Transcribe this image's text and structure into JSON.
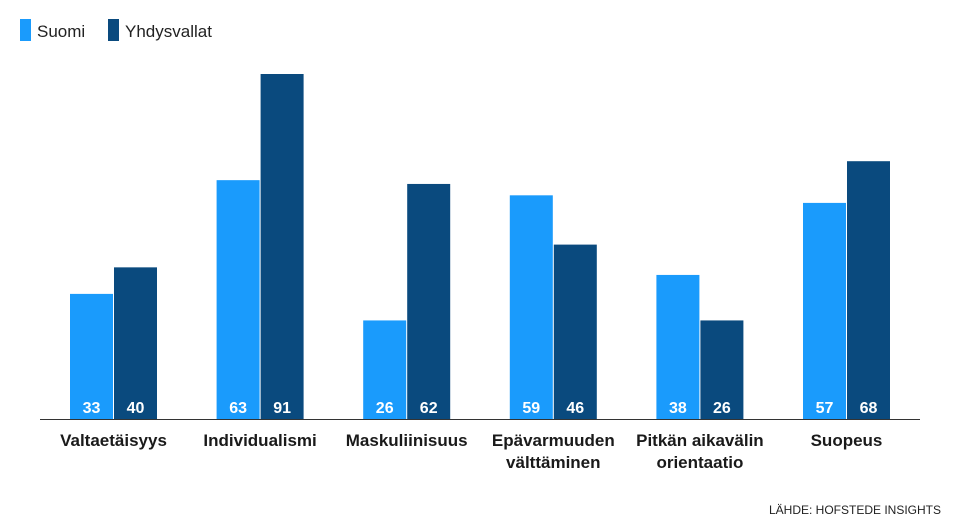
{
  "chart_data": {
    "type": "bar",
    "title": "",
    "xlabel": "",
    "ylabel": "",
    "categories": [
      [
        "Valtaetäisyys"
      ],
      [
        "Individualismi"
      ],
      [
        "Maskuliinisuus"
      ],
      [
        "Epävarmuuden",
        "välttäminen"
      ],
      [
        "Pitkän aikavälin",
        "orientaatio"
      ],
      [
        "Suopeus"
      ]
    ],
    "series": [
      {
        "name": "Suomi",
        "color": "#1a9bfc",
        "values": [
          33,
          63,
          26,
          59,
          38,
          57
        ]
      },
      {
        "name": "Yhdysvallat",
        "color": "#0a4a7e",
        "values": [
          40,
          91,
          62,
          46,
          26,
          68
        ]
      }
    ],
    "ylim": [
      0,
      100
    ],
    "grid": false,
    "legend_position": "top-left",
    "source": "LÄHDE: HOFSTEDE INSIGHTS"
  }
}
